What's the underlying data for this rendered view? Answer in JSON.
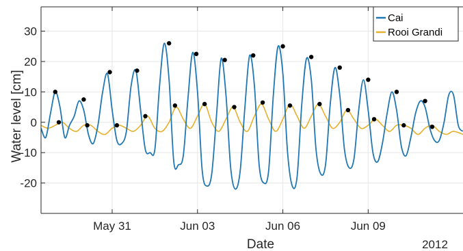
{
  "chart_data": {
    "type": "line",
    "xlabel": "Date",
    "ylabel": "Water level [cm]",
    "year_label": "2012",
    "x_ticks": [
      "May 31",
      "Jun 03",
      "Jun 06",
      "Jun 09"
    ],
    "y_ticks": [
      "30",
      "20",
      "10",
      "0",
      "-10",
      "-20"
    ],
    "xlim": [
      "2012-05-28 12:00",
      "2012-06-12 08:00"
    ],
    "ylim": [
      -30,
      38
    ],
    "grid": true,
    "legend": {
      "placement": "top-right",
      "entries": [
        "Cai",
        "Rooi Grandi"
      ]
    },
    "colors": {
      "Cai": "#1f77b4",
      "Rooi Grandi": "#e6b02b",
      "peaks": "#000000",
      "axis": "#262626",
      "grid": "#e6e6e6"
    },
    "series": [
      {
        "name": "Cai",
        "x": [
          "2012-05-28 12:00",
          "2012-05-28 16:00",
          "2012-05-28 20:00",
          "2012-05-29 00:00",
          "2012-05-29 04:00",
          "2012-05-29 08:00",
          "2012-05-29 12:00",
          "2012-05-29 16:00",
          "2012-05-29 20:00",
          "2012-05-30 00:00",
          "2012-05-30 04:00",
          "2012-05-30 08:00",
          "2012-05-30 12:00",
          "2012-05-30 16:00",
          "2012-05-30 20:00",
          "2012-05-31 00:00",
          "2012-05-31 04:00",
          "2012-05-31 08:00",
          "2012-05-31 12:00",
          "2012-05-31 16:00",
          "2012-05-31 20:00",
          "2012-06-01 00:00",
          "2012-06-01 04:00",
          "2012-06-01 08:00",
          "2012-06-01 12:00",
          "2012-06-01 16:00",
          "2012-06-01 20:00",
          "2012-06-02 00:00",
          "2012-06-02 04:00",
          "2012-06-02 08:00",
          "2012-06-02 12:00",
          "2012-06-02 16:00",
          "2012-06-02 20:00",
          "2012-06-03 00:00",
          "2012-06-03 04:00",
          "2012-06-03 08:00",
          "2012-06-03 12:00",
          "2012-06-03 16:00",
          "2012-06-03 20:00",
          "2012-06-04 00:00",
          "2012-06-04 04:00",
          "2012-06-04 08:00",
          "2012-06-04 12:00",
          "2012-06-04 16:00",
          "2012-06-04 20:00",
          "2012-06-05 00:00",
          "2012-06-05 04:00",
          "2012-06-05 08:00",
          "2012-06-05 12:00",
          "2012-06-05 16:00",
          "2012-06-05 20:00",
          "2012-06-06 00:00",
          "2012-06-06 04:00",
          "2012-06-06 08:00",
          "2012-06-06 12:00",
          "2012-06-06 16:00",
          "2012-06-06 20:00",
          "2012-06-07 00:00",
          "2012-06-07 04:00",
          "2012-06-07 08:00",
          "2012-06-07 12:00",
          "2012-06-07 16:00",
          "2012-06-07 20:00",
          "2012-06-08 00:00",
          "2012-06-08 04:00",
          "2012-06-08 08:00",
          "2012-06-08 12:00",
          "2012-06-08 16:00",
          "2012-06-08 20:00",
          "2012-06-09 00:00",
          "2012-06-09 04:00",
          "2012-06-09 08:00",
          "2012-06-09 12:00",
          "2012-06-09 16:00",
          "2012-06-09 20:00",
          "2012-06-10 00:00",
          "2012-06-10 04:00",
          "2012-06-10 08:00",
          "2012-06-10 12:00",
          "2012-06-10 16:00",
          "2012-06-10 20:00",
          "2012-06-11 00:00",
          "2012-06-11 04:00",
          "2012-06-11 08:00",
          "2012-06-11 12:00",
          "2012-06-11 16:00",
          "2012-06-11 20:00",
          "2012-06-12 00:00",
          "2012-06-12 04:00",
          "2012-06-12 08:00"
        ],
        "values": [
          -2,
          -5,
          3,
          10,
          5,
          -5,
          -1,
          2,
          7,
          4,
          -4,
          -7,
          -1,
          10,
          16,
          4,
          -6,
          -7,
          -3,
          12,
          17,
          4,
          -9,
          -10,
          -9,
          12,
          26,
          14,
          -13,
          -14,
          -11,
          8,
          23,
          10,
          -16,
          -21,
          -17,
          2,
          21,
          9,
          -15,
          -22,
          -16,
          5,
          22,
          12,
          -14,
          -20,
          -16,
          9,
          25,
          16,
          -10,
          -21,
          -18,
          6,
          21,
          14,
          -9,
          -17,
          -14,
          6,
          18,
          9,
          -9,
          -15,
          -12,
          4,
          14,
          4,
          -10,
          -13,
          -7,
          3,
          10,
          4,
          -8,
          -11,
          -5,
          3,
          7,
          5,
          -2,
          -6,
          -6,
          0,
          9,
          9,
          -1,
          -3
        ],
        "peaks": {
          "x": [
            "2012-05-29 00:00",
            "2012-05-30 00:00",
            "2012-05-30 22:00",
            "2012-05-31 21:00",
            "2012-06-02 00:00",
            "2012-06-02 23:00",
            "2012-06-03 23:00",
            "2012-06-04 23:00",
            "2012-06-06 00:00",
            "2012-06-07 00:00",
            "2012-06-08 00:00",
            "2012-06-09 00:00",
            "2012-06-10 00:00",
            "2012-06-11 00:00"
          ],
          "values": [
            10,
            7.5,
            16.5,
            17,
            26,
            22.5,
            20.5,
            22,
            25,
            21.5,
            18,
            14,
            10,
            7
          ]
        }
      },
      {
        "name": "Rooi Grandi",
        "x": [
          "2012-05-28 12:00",
          "2012-05-28 18:00",
          "2012-05-29 00:00",
          "2012-05-29 06:00",
          "2012-05-29 12:00",
          "2012-05-29 18:00",
          "2012-05-30 00:00",
          "2012-05-30 06:00",
          "2012-05-30 12:00",
          "2012-05-30 18:00",
          "2012-05-31 00:00",
          "2012-05-31 06:00",
          "2012-05-31 12:00",
          "2012-05-31 18:00",
          "2012-06-01 00:00",
          "2012-06-01 06:00",
          "2012-06-01 12:00",
          "2012-06-01 18:00",
          "2012-06-02 00:00",
          "2012-06-02 06:00",
          "2012-06-02 12:00",
          "2012-06-02 18:00",
          "2012-06-03 00:00",
          "2012-06-03 06:00",
          "2012-06-03 12:00",
          "2012-06-03 18:00",
          "2012-06-04 00:00",
          "2012-06-04 06:00",
          "2012-06-04 12:00",
          "2012-06-04 18:00",
          "2012-06-05 00:00",
          "2012-06-05 06:00",
          "2012-06-05 12:00",
          "2012-06-05 18:00",
          "2012-06-06 00:00",
          "2012-06-06 06:00",
          "2012-06-06 12:00",
          "2012-06-06 18:00",
          "2012-06-07 00:00",
          "2012-06-07 06:00",
          "2012-06-07 12:00",
          "2012-06-07 18:00",
          "2012-06-08 00:00",
          "2012-06-08 06:00",
          "2012-06-08 12:00",
          "2012-06-08 18:00",
          "2012-06-09 00:00",
          "2012-06-09 06:00",
          "2012-06-09 12:00",
          "2012-06-09 18:00",
          "2012-06-10 00:00",
          "2012-06-10 06:00",
          "2012-06-10 12:00",
          "2012-06-10 18:00",
          "2012-06-11 00:00",
          "2012-06-11 06:00",
          "2012-06-11 12:00",
          "2012-06-11 18:00",
          "2012-06-12 00:00",
          "2012-06-12 08:00"
        ],
        "values": [
          -1,
          -2,
          -1,
          0,
          -2,
          -3,
          -1,
          -1,
          -3,
          -4,
          -2,
          -1,
          -2,
          -3,
          -1,
          2,
          -2,
          -3,
          0,
          5,
          1,
          -2,
          2,
          6,
          0,
          -3,
          1,
          5,
          0,
          -3,
          2,
          6,
          1,
          -3,
          1,
          6,
          2,
          -2,
          2,
          6,
          2,
          -2,
          0,
          4,
          1,
          -2,
          -1,
          1,
          -1,
          -3,
          -1,
          -1,
          -2,
          -4,
          -2,
          -1,
          -3,
          -4,
          -3,
          -4
        ],
        "peaks": {
          "x": [
            "2012-05-29 03:00",
            "2012-05-30 03:00",
            "2012-05-31 04:00",
            "2012-06-01 04:00",
            "2012-06-02 05:00",
            "2012-06-03 06:00",
            "2012-06-04 07:00",
            "2012-06-05 07:00",
            "2012-06-06 06:00",
            "2012-06-07 07:00",
            "2012-06-08 07:00",
            "2012-06-09 05:00",
            "2012-06-10 06:00",
            "2012-06-11 06:00"
          ],
          "values": [
            0,
            -1,
            -1,
            2,
            5.5,
            6,
            5,
            6.5,
            5.5,
            6,
            4,
            1,
            -1,
            -1.5
          ]
        }
      }
    ]
  }
}
